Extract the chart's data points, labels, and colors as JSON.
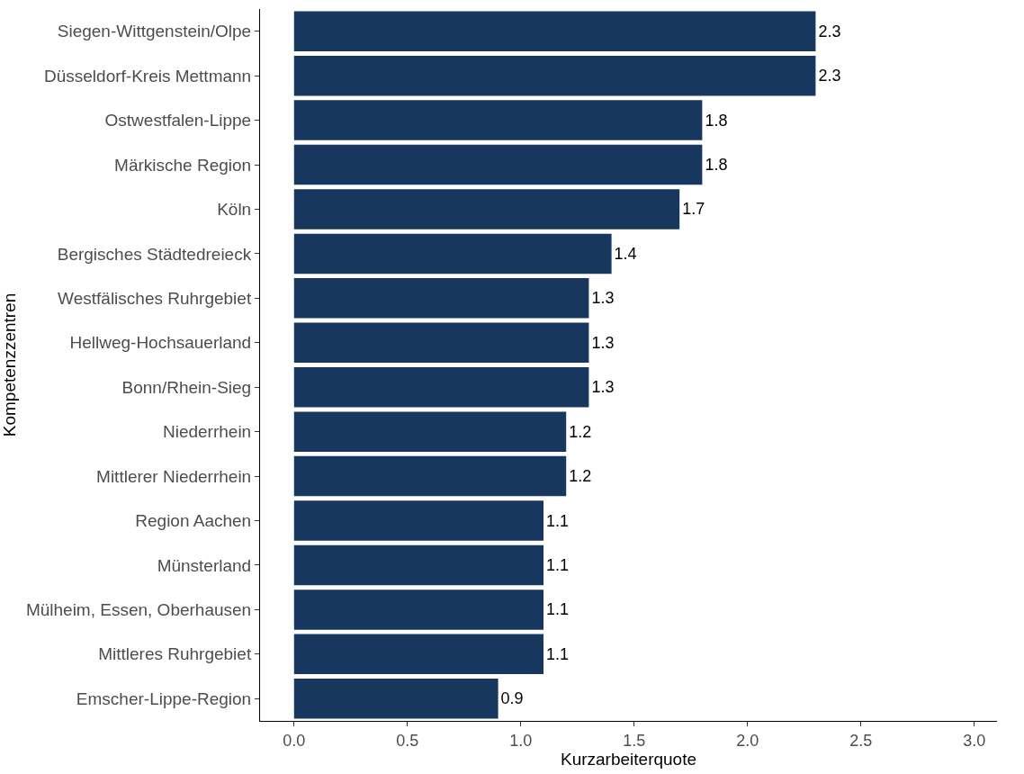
{
  "chart_data": {
    "type": "bar",
    "orientation": "horizontal",
    "xlabel": "Kurzarbeiterquote",
    "ylabel": "Kompetenzzentren",
    "categories": [
      "Siegen-Wittgenstein/Olpe",
      "Düsseldorf-Kreis Mettmann",
      "Ostwestfalen-Lippe",
      "Märkische Region",
      "Köln",
      "Bergisches Städtedreieck",
      "Westfälisches Ruhrgebiet",
      "Hellweg-Hochsauerland",
      "Bonn/Rhein-Sieg",
      "Niederrhein",
      "Mittlerer Niederrhein",
      "Region Aachen",
      "Münsterland",
      "Mülheim, Essen, Oberhausen",
      "Mittleres Ruhrgebiet",
      "Emscher-Lippe-Region"
    ],
    "values": [
      2.3,
      2.3,
      1.8,
      1.8,
      1.7,
      1.4,
      1.3,
      1.3,
      1.3,
      1.2,
      1.2,
      1.1,
      1.1,
      1.1,
      1.1,
      0.9
    ],
    "color": "#17375e",
    "data_labels": true,
    "xlim": [
      -0.15,
      3.1
    ],
    "xticks": [
      {
        "value": 0,
        "label": "0.0"
      },
      {
        "value": 0.5,
        "label": "0.5"
      },
      {
        "value": 1,
        "label": "1.0"
      },
      {
        "value": 1.5,
        "label": "1.5"
      },
      {
        "value": 2,
        "label": "2.0"
      },
      {
        "value": 2.5,
        "label": "2.5"
      },
      {
        "value": 3,
        "label": "3.0"
      }
    ],
    "legend": false
  }
}
